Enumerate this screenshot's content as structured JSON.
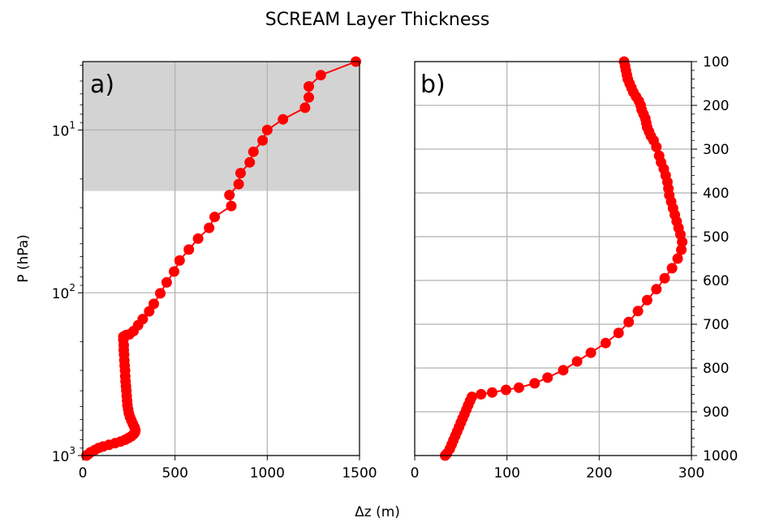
{
  "figure": {
    "title": "SCREAM Layer Thickness",
    "shared_xlabel": "Δz (m)"
  },
  "chart_data": [
    {
      "type": "line",
      "panel_label": "a)",
      "xlabel": "Δz (m)",
      "ylabel": "P (hPa)",
      "xlim": [
        0,
        1500
      ],
      "ylim": [
        1000,
        3.8
      ],
      "yscale": "log",
      "x_ticks": [
        "0",
        "500",
        "1000",
        "1500"
      ],
      "y_ticks": [
        {
          "base": "10",
          "exp": "1",
          "value": 10
        },
        {
          "base": "10",
          "exp": "2",
          "value": 100
        },
        {
          "base": "10",
          "exp": "3",
          "value": 1000
        }
      ],
      "grid": true,
      "shaded_region": {
        "p_top": 3.8,
        "p_bottom": 23.7,
        "color": "#d3d3d3"
      },
      "series": [
        {
          "color": "#ff0000",
          "marker": "circle",
          "points": [
            [
              1480,
              3.8
            ],
            [
              1290,
              4.6
            ],
            [
              1225,
              5.4
            ],
            [
              1225,
              6.3
            ],
            [
              1205,
              7.3
            ],
            [
              1085,
              8.6
            ],
            [
              1000,
              10.0
            ],
            [
              975,
              11.6
            ],
            [
              925,
              13.6
            ],
            [
              905,
              15.8
            ],
            [
              855,
              18.4
            ],
            [
              845,
              21.5
            ],
            [
              795,
              25.1
            ],
            [
              805,
              29.3
            ],
            [
              715,
              34.2
            ],
            [
              685,
              39.9
            ],
            [
              625,
              46.5
            ],
            [
              575,
              54.3
            ],
            [
              525,
              63.4
            ],
            [
              495,
              74.1
            ],
            [
              455,
              86.4
            ],
            [
              420,
              100.8
            ],
            [
              385,
              117.0
            ],
            [
              360,
              130.0
            ],
            [
              325,
              145.0
            ],
            [
              300,
              158.0
            ],
            [
              275,
              172.0
            ],
            [
              252,
              180.0
            ],
            [
              235,
              182.0
            ],
            [
              220,
              186.0
            ],
            [
              220,
              195.0
            ],
            [
              222,
              210.0
            ],
            [
              222,
              225.0
            ],
            [
              224,
              240.0
            ],
            [
              225,
              260.0
            ],
            [
              227,
              280.0
            ],
            [
              229,
              300.0
            ],
            [
              230,
              325.0
            ],
            [
              232,
              350.0
            ],
            [
              234,
              375.0
            ],
            [
              236,
              400.0
            ],
            [
              238,
              430.0
            ],
            [
              240,
              460.0
            ],
            [
              242,
              490.0
            ],
            [
              246,
              520.0
            ],
            [
              250,
              550.0
            ],
            [
              256,
              580.0
            ],
            [
              264,
              610.0
            ],
            [
              272,
              640.0
            ],
            [
              280,
              670.0
            ],
            [
              285,
              700.0
            ],
            [
              283,
              720.0
            ],
            [
              276,
              740.0
            ],
            [
              264,
              760.0
            ],
            [
              248,
              780.0
            ],
            [
              230,
              800.0
            ],
            [
              205,
              820.0
            ],
            [
              175,
              840.0
            ],
            [
              142,
              860.0
            ],
            [
              110,
              880.0
            ],
            [
              85,
              900.0
            ],
            [
              65,
              925.0
            ],
            [
              42,
              955.0
            ],
            [
              28,
              985.0
            ],
            [
              20,
              1000.0
            ]
          ]
        }
      ]
    },
    {
      "type": "line",
      "panel_label": "b)",
      "xlabel": "Δz (m)",
      "xlim": [
        0,
        300
      ],
      "ylim": [
        1000,
        100
      ],
      "yscale": "linear",
      "x_ticks": [
        "0",
        "100",
        "200",
        "300"
      ],
      "y_ticks": [
        "100",
        "200",
        "300",
        "400",
        "500",
        "600",
        "700",
        "800",
        "900",
        "1000"
      ],
      "y_axis_side": "right",
      "grid": true,
      "series": [
        {
          "color": "#ff0000",
          "marker": "circle",
          "points": [
            [
              227,
              100
            ],
            [
              228,
              110
            ],
            [
              229,
              120
            ],
            [
              230,
              130
            ],
            [
              231,
              140
            ],
            [
              233,
              150
            ],
            [
              235,
              160
            ],
            [
              237,
              170
            ],
            [
              240,
              180
            ],
            [
              243,
              190
            ],
            [
              245,
              200
            ],
            [
              246,
              210
            ],
            [
              248,
              220
            ],
            [
              250,
              230
            ],
            [
              251,
              240
            ],
            [
              252,
              250
            ],
            [
              254,
              260
            ],
            [
              256,
              270
            ],
            [
              259,
              280
            ],
            [
              262,
              295
            ],
            [
              265,
              315
            ],
            [
              267,
              330
            ],
            [
              270,
              345
            ],
            [
              272,
              360
            ],
            [
              274,
              375
            ],
            [
              275,
              390
            ],
            [
              276,
              405
            ],
            [
              278,
              420
            ],
            [
              280,
              435
            ],
            [
              282,
              450
            ],
            [
              284,
              465
            ],
            [
              286,
              480
            ],
            [
              288,
              495
            ],
            [
              290,
              512
            ],
            [
              289,
              530
            ],
            [
              285,
              550
            ],
            [
              279,
              572
            ],
            [
              271,
              595
            ],
            [
              262,
              620
            ],
            [
              252,
              645
            ],
            [
              242,
              670
            ],
            [
              232,
              695
            ],
            [
              221,
              720
            ],
            [
              207,
              743
            ],
            [
              191,
              765
            ],
            [
              176,
              785
            ],
            [
              161,
              805
            ],
            [
              144,
              822
            ],
            [
              130,
              835
            ],
            [
              113,
              845
            ],
            [
              99,
              850
            ],
            [
              84,
              856
            ],
            [
              72,
              860
            ],
            [
              62,
              866
            ],
            [
              60,
              875
            ],
            [
              58,
              885
            ],
            [
              56,
              895
            ],
            [
              54,
              905
            ],
            [
              52,
              915
            ],
            [
              50,
              925
            ],
            [
              48,
              935
            ],
            [
              46,
              945
            ],
            [
              44,
              955
            ],
            [
              42,
              965
            ],
            [
              40,
              975
            ],
            [
              38,
              985
            ],
            [
              35,
              995
            ],
            [
              33,
              1000
            ]
          ]
        }
      ]
    }
  ]
}
